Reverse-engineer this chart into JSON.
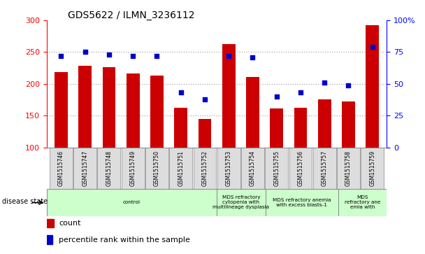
{
  "title": "GDS5622 / ILMN_3236112",
  "samples": [
    "GSM1515746",
    "GSM1515747",
    "GSM1515748",
    "GSM1515749",
    "GSM1515750",
    "GSM1515751",
    "GSM1515752",
    "GSM1515753",
    "GSM1515754",
    "GSM1515755",
    "GSM1515756",
    "GSM1515757",
    "GSM1515758",
    "GSM1515759"
  ],
  "counts": [
    219,
    228,
    226,
    216,
    213,
    162,
    145,
    263,
    211,
    161,
    162,
    176,
    172,
    292
  ],
  "percentile_ranks": [
    72,
    75,
    73,
    72,
    72,
    43,
    38,
    72,
    71,
    40,
    43,
    51,
    49,
    79
  ],
  "ylim_left": [
    100,
    300
  ],
  "ylim_right": [
    0,
    100
  ],
  "yticks_left": [
    100,
    150,
    200,
    250,
    300
  ],
  "yticks_right": [
    0,
    25,
    50,
    75,
    100
  ],
  "ytick_right_labels": [
    "0",
    "25",
    "50",
    "75",
    "100%"
  ],
  "bar_color": "#cc0000",
  "dot_color": "#0000cc",
  "grid_color": "#aaaaaa",
  "label_row_color": "#dddddd",
  "disease_groups": [
    {
      "label": "control",
      "start": 0,
      "end": 7
    },
    {
      "label": "MDS refractory\ncytopenia with\nmultilineage dysplasia",
      "start": 7,
      "end": 9
    },
    {
      "label": "MDS refractory anemia\nwith excess blasts-1",
      "start": 9,
      "end": 12
    },
    {
      "label": "MDS\nrefractory ane\nemia with",
      "start": 12,
      "end": 14
    }
  ],
  "disease_color": "#ccffcc",
  "xlabel_disease": "disease state",
  "legend_count": "count",
  "legend_percentile": "percentile rank within the sample"
}
